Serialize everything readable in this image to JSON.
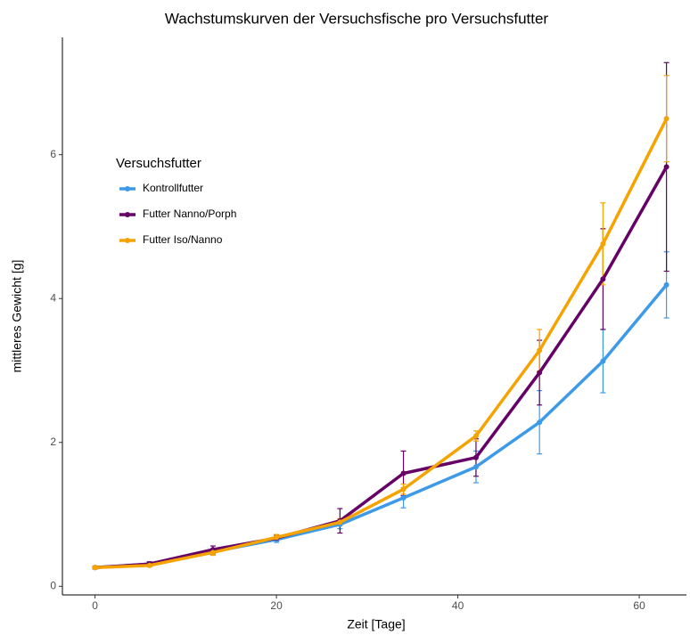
{
  "chart_data": {
    "type": "line",
    "title": "Wachstumskurven der Versuchsfische pro Versuchsfutter",
    "x_label": "Zeit [Tage]",
    "y_label": "mittleres Gewicht [g]",
    "legend_title": "Versuchsfutter",
    "legend_position": "left",
    "x": [
      0,
      6,
      13,
      20,
      27,
      34,
      42,
      49,
      56,
      63
    ],
    "series": [
      {
        "name": "Kontrollfutter",
        "color": "#3d9ae8",
        "values": [
          0.26,
          0.31,
          0.48,
          0.65,
          0.86,
          1.23,
          1.66,
          2.28,
          3.13,
          4.19
        ],
        "errors": [
          0.02,
          0.03,
          0.04,
          0.04,
          0.06,
          0.14,
          0.22,
          0.44,
          0.44,
          0.46
        ]
      },
      {
        "name": "Futter Nanno/Porph",
        "color": "#660066",
        "values": [
          0.26,
          0.31,
          0.51,
          0.67,
          0.91,
          1.57,
          1.79,
          2.97,
          4.27,
          5.83
        ],
        "errors": [
          0.02,
          0.03,
          0.05,
          0.04,
          0.17,
          0.31,
          0.26,
          0.45,
          0.7,
          1.45
        ]
      },
      {
        "name": "Futter Iso/Nanno",
        "color": "#f5a300",
        "values": [
          0.26,
          0.29,
          0.47,
          0.68,
          0.89,
          1.35,
          2.09,
          3.28,
          4.76,
          6.5
        ],
        "errors": [
          0.02,
          0.02,
          0.04,
          0.04,
          0.05,
          0.07,
          0.07,
          0.29,
          0.57,
          0.6
        ]
      }
    ],
    "xlim": [
      -3.6,
      65.2
    ],
    "ylim": [
      -0.12,
      7.63
    ],
    "xticks": [
      0,
      20,
      40,
      60
    ],
    "yticks": [
      0,
      2,
      4,
      6
    ],
    "grid": false
  }
}
